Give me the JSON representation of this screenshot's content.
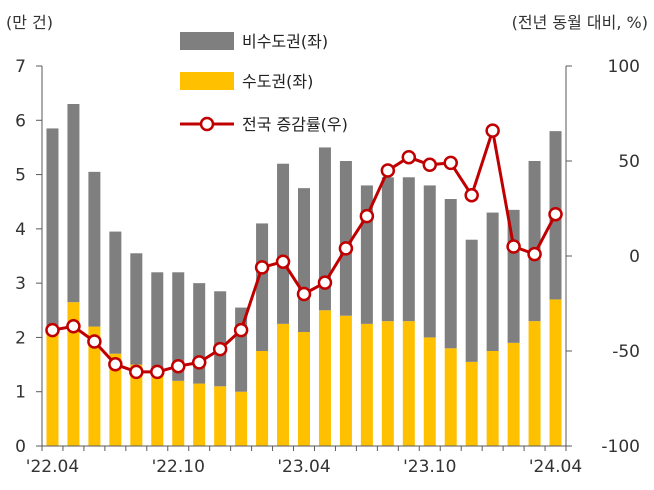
{
  "chart_data": {
    "type": "bar+line",
    "left_unit": "(만 건)",
    "right_unit": "(전년 동월 대비, %)",
    "x_ticks": [
      {
        "index": 0,
        "label": "'22.04"
      },
      {
        "index": 6,
        "label": "'22.10"
      },
      {
        "index": 12,
        "label": "'23.04"
      },
      {
        "index": 18,
        "label": "'23.10"
      },
      {
        "index": 24,
        "label": "'24.04"
      }
    ],
    "left_axis": {
      "min": 0,
      "max": 7,
      "ticks": [
        "0",
        "1",
        "2",
        "3",
        "4",
        "5",
        "6",
        "7"
      ]
    },
    "right_axis": {
      "min": -100,
      "max": 100,
      "ticks": [
        "-100",
        "-50",
        "0",
        "50",
        "100"
      ]
    },
    "categories": [
      "'22.04",
      "'22.05",
      "'22.06",
      "'22.07",
      "'22.08",
      "'22.09",
      "'22.10",
      "'22.11",
      "'22.12",
      "'23.01",
      "'23.02",
      "'23.03",
      "'23.04",
      "'23.05",
      "'23.06",
      "'23.07",
      "'23.08",
      "'23.09",
      "'23.10",
      "'23.11",
      "'23.12",
      "'24.01",
      "'24.02",
      "'24.03",
      "'24.04"
    ],
    "series": [
      {
        "name": "비수도권(좌)",
        "color": "#7f7f7f",
        "stack_top": true,
        "values": [
          3.75,
          3.65,
          2.85,
          2.25,
          2.05,
          1.9,
          2.0,
          1.85,
          1.75,
          1.55,
          2.35,
          2.95,
          2.65,
          3.0,
          2.85,
          2.55,
          2.65,
          2.65,
          2.8,
          2.75,
          2.25,
          2.55,
          2.45,
          2.95,
          3.1
        ]
      },
      {
        "name": "수도권(좌)",
        "color": "#ffc000",
        "values": [
          2.1,
          2.65,
          2.2,
          1.7,
          1.5,
          1.3,
          1.2,
          1.15,
          1.1,
          1.0,
          1.75,
          2.25,
          2.1,
          2.5,
          2.4,
          2.25,
          2.3,
          2.3,
          2.0,
          1.8,
          1.55,
          1.75,
          1.9,
          2.3,
          2.7
        ]
      },
      {
        "name": "전국 증감률(우)",
        "color": "#c00000",
        "axis": "right",
        "values": [
          -39,
          -37,
          -45,
          -57,
          -61,
          -61,
          -58,
          -56,
          -49,
          -39,
          -6,
          -3,
          -20,
          -14,
          4,
          21,
          45,
          52,
          48,
          49,
          32,
          66,
          5,
          1,
          22
        ]
      }
    ]
  }
}
